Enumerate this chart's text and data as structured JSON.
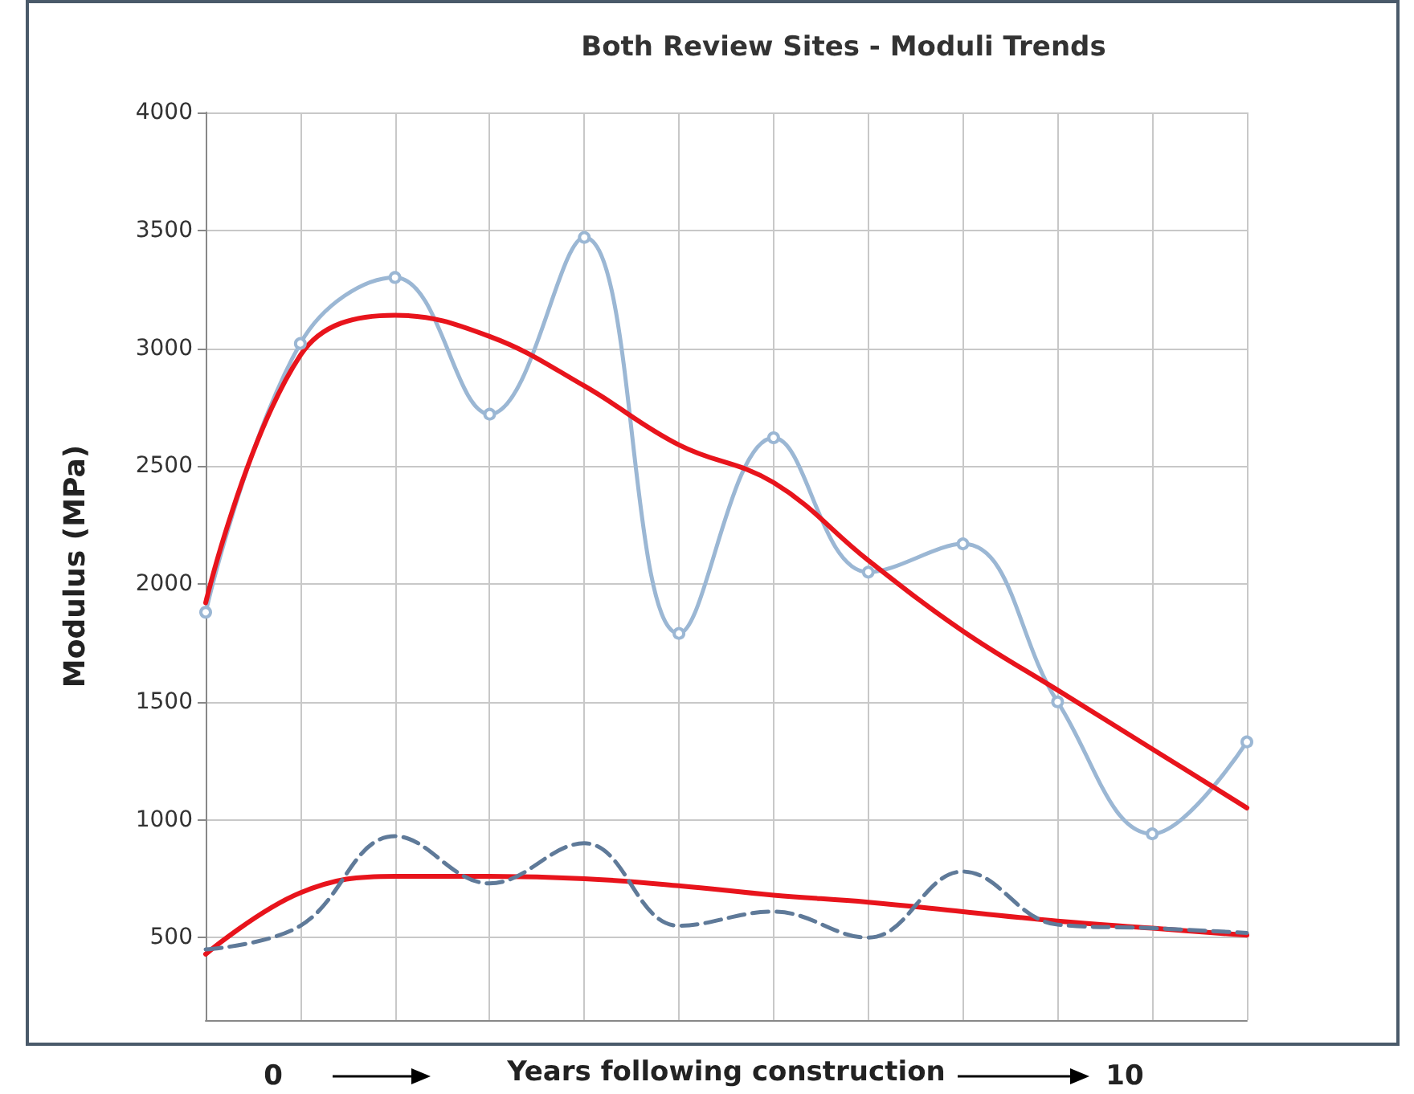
{
  "chart_data": {
    "type": "line",
    "title": "Both Review Sites - Moduli Trends",
    "xlabel": "Years following construction",
    "ylabel": "Modulus (MPa)",
    "annotations": [
      "0",
      "10"
    ],
    "categories": [
      null,
      null,
      null,
      null,
      null,
      null,
      null,
      null,
      null,
      null,
      null,
      null
    ],
    "series": [
      {
        "color": "#9bb7d4",
        "marker": "circle",
        "line_style": "solid",
        "values": [
          1880,
          3020,
          3300,
          2720,
          3470,
          1790,
          2620,
          2050,
          2170,
          1500,
          940,
          1330
        ]
      },
      {
        "color": "#e8141c",
        "marker": "none",
        "line_style": "solid",
        "values": [
          1920,
          2970,
          3140,
          3050,
          2840,
          2590,
          2430,
          2100,
          1800,
          1550,
          1300,
          1050
        ]
      },
      {
        "color": "#e8141c",
        "marker": "none",
        "line_style": "solid",
        "values": [
          430,
          690,
          760,
          760,
          750,
          720,
          680,
          650,
          610,
          570,
          540,
          510
        ]
      },
      {
        "color": "#5f7a99",
        "marker": "none",
        "line_style": "dashed",
        "values": [
          450,
          550,
          930,
          730,
          900,
          550,
          610,
          500,
          780,
          555,
          540,
          520
        ]
      }
    ],
    "ylim": [
      150,
      4000
    ],
    "yticks": [
      500,
      1000,
      1500,
      2000,
      2500,
      3000,
      3500,
      4000
    ],
    "grid": true,
    "tick_labels": "y"
  }
}
